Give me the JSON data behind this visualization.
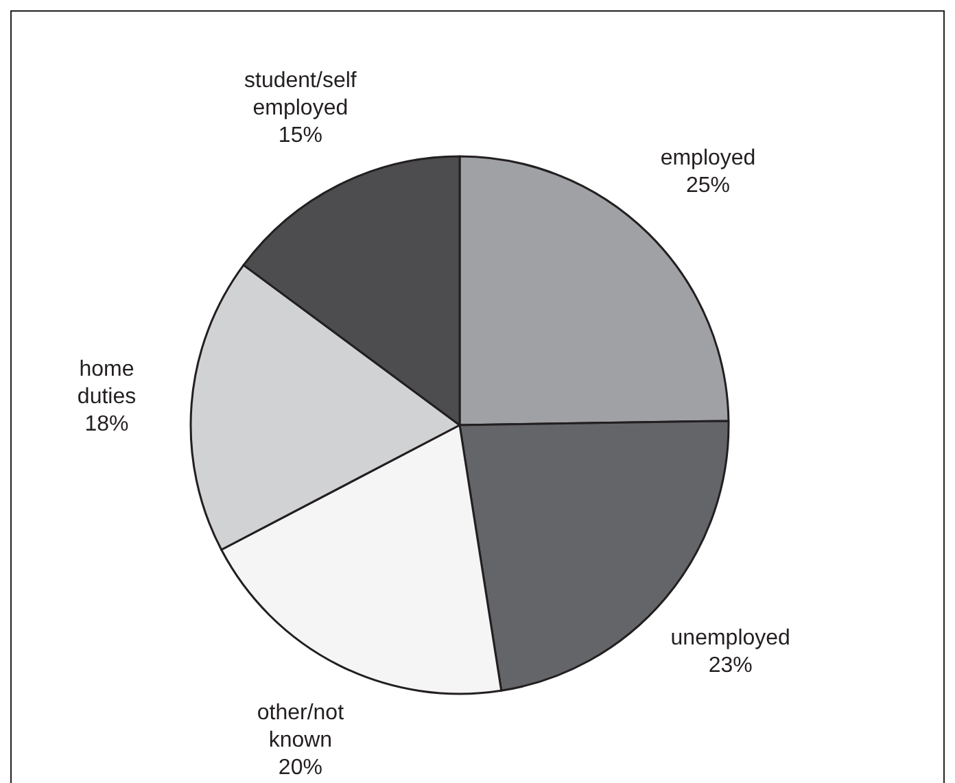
{
  "chart_data": {
    "type": "pie",
    "categories": [
      "employed",
      "unemployed",
      "other/not known",
      "home duties",
      "student/self employed"
    ],
    "values": [
      25,
      23,
      20,
      18,
      15
    ],
    "value_labels": [
      "25%",
      "23%",
      "20%",
      "18%",
      "15%"
    ],
    "colors": [
      "#a0a1a4",
      "#646569",
      "#f5f5f5",
      "#d1d2d4",
      "#4d4d4f"
    ]
  }
}
